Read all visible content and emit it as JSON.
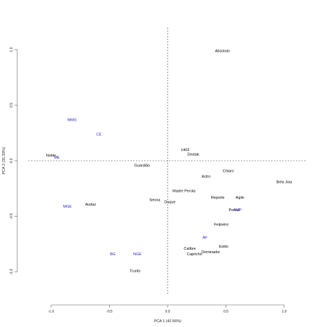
{
  "chart_data": {
    "type": "scatter",
    "title": "",
    "xlabel": "PCA 1 (42.56%)",
    "ylabel": "PCA 2 (31.33%)",
    "xlim": [
      -1.0,
      1.0
    ],
    "ylim": [
      -1.0,
      1.0
    ],
    "x_ticks": [
      "-1.0",
      "-0.5",
      "0.0",
      "0.5",
      "1.0"
    ],
    "y_ticks": [
      "-1.0",
      "-0.5",
      "0.0",
      "0.5",
      "1.0"
    ],
    "reference_lines": {
      "x": 0,
      "y": 0,
      "style": "dashed"
    },
    "colors": {
      "genotype": "#000000",
      "variable": "#2222cc"
    },
    "grid": false,
    "series": [
      {
        "role": "genotype",
        "points": [
          {
            "label": "Absoluto",
            "x": 0.47,
            "y": 0.99
          },
          {
            "label": "1403",
            "x": 0.15,
            "y": 0.1
          },
          {
            "label": "Destak",
            "x": 0.22,
            "y": 0.06
          },
          {
            "label": "Noble",
            "x": -1.0,
            "y": 0.05
          },
          {
            "label": "Guardião",
            "x": -0.22,
            "y": -0.04
          },
          {
            "label": "Chiaro",
            "x": 0.52,
            "y": -0.09
          },
          {
            "label": "Astro",
            "x": 0.33,
            "y": -0.14
          },
          {
            "label": "Bela Joia",
            "x": 1.0,
            "y": -0.19
          },
          {
            "label": "Madre Perola",
            "x": 0.14,
            "y": -0.27
          },
          {
            "label": "Reporte",
            "x": 0.43,
            "y": -0.33
          },
          {
            "label": "Agile",
            "x": 0.62,
            "y": -0.33
          },
          {
            "label": "Senna",
            "x": -0.11,
            "y": -0.35
          },
          {
            "label": "Duque",
            "x": 0.02,
            "y": -0.37
          },
          {
            "label": "Audaz",
            "x": -0.66,
            "y": -0.39
          },
          {
            "label": "Pontal",
            "x": 0.57,
            "y": -0.44
          },
          {
            "label": "Feijoeiro",
            "x": 0.46,
            "y": -0.57
          },
          {
            "label": "Estilo",
            "x": 0.48,
            "y": -0.77
          },
          {
            "label": "Calibre",
            "x": 0.19,
            "y": -0.79
          },
          {
            "label": "Dominador",
            "x": 0.37,
            "y": -0.82
          },
          {
            "label": "Capricho",
            "x": 0.23,
            "y": -0.84
          },
          {
            "label": "Trunfo",
            "x": -0.28,
            "y": -0.99
          }
        ]
      },
      {
        "role": "variable",
        "points": [
          {
            "label": "MMG",
            "x": -0.82,
            "y": 0.37
          },
          {
            "label": "CE",
            "x": -0.59,
            "y": 0.24
          },
          {
            "label": "ME",
            "x": -0.95,
            "y": 0.03
          },
          {
            "label": "MGE",
            "x": -0.86,
            "y": -0.41
          },
          {
            "label": "NVP",
            "x": 0.6,
            "y": -0.44
          },
          {
            "label": "AF",
            "x": 0.32,
            "y": -0.69
          },
          {
            "label": "BG",
            "x": -0.47,
            "y": -0.84
          },
          {
            "label": "NGE",
            "x": -0.26,
            "y": -0.84
          }
        ]
      }
    ]
  }
}
